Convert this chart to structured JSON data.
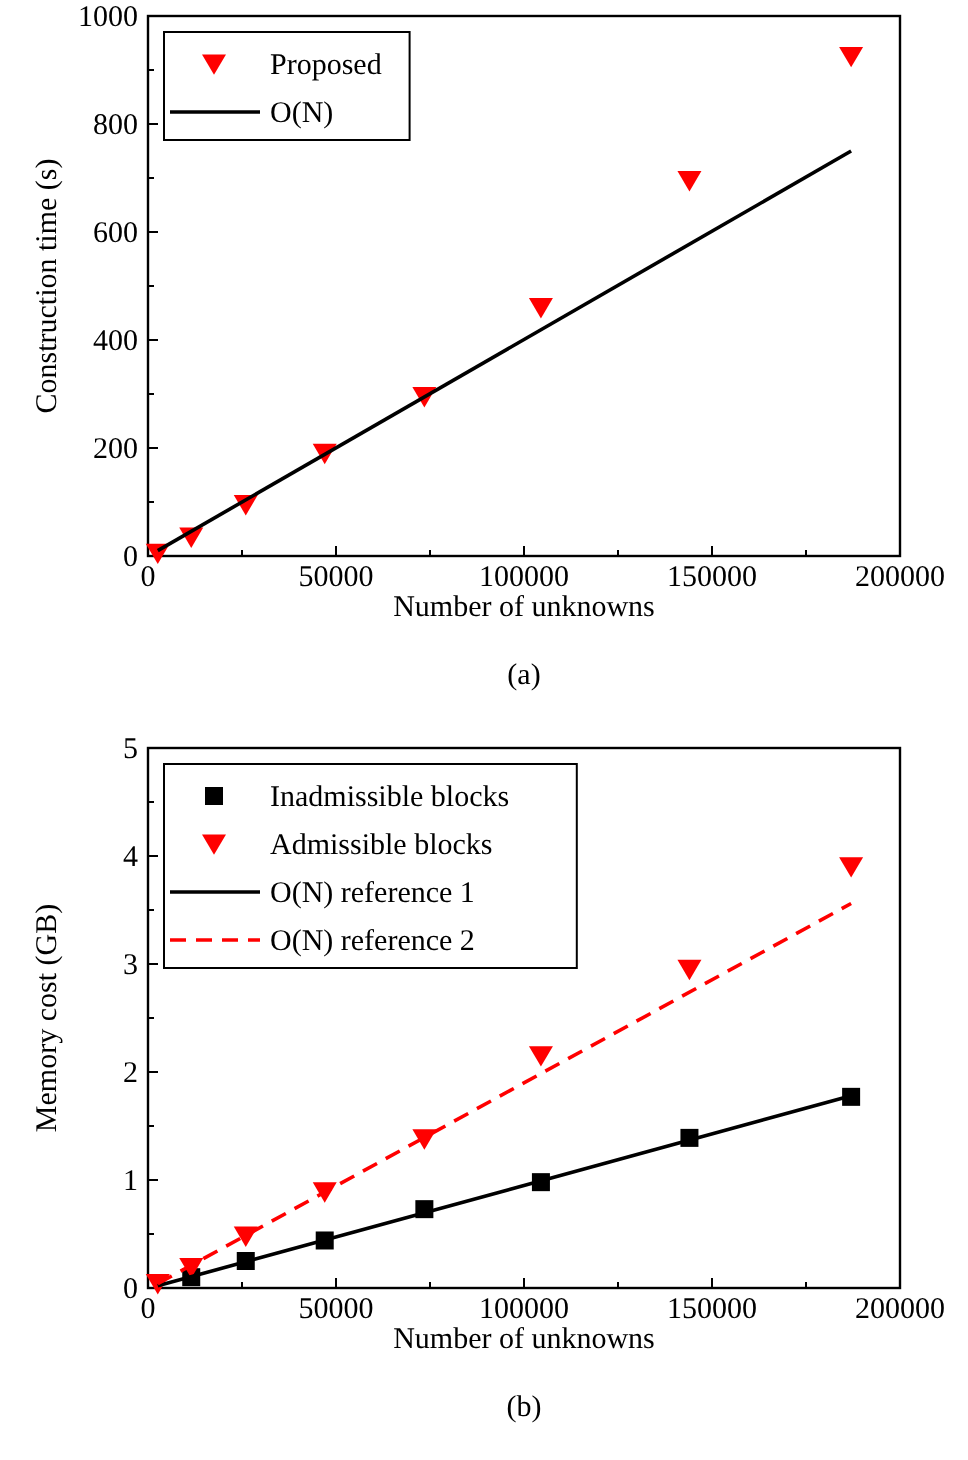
{
  "chart_data": [
    {
      "type": "scatter",
      "xlabel": "Number of unknowns",
      "ylabel": "Construction time (s)",
      "xlim": [
        0,
        200000
      ],
      "ylim": [
        0,
        1000
      ],
      "xticks": [
        0,
        {
          "value": 25000,
          "label": null
        },
        50000,
        {
          "value": 75000,
          "label": null
        },
        100000,
        {
          "value": 125000,
          "label": null
        },
        150000,
        {
          "value": 175000,
          "label": null
        },
        200000
      ],
      "yticks": [
        0,
        {
          "value": 100,
          "label": null
        },
        200,
        {
          "value": 300,
          "label": null
        },
        400,
        {
          "value": 500,
          "label": null
        },
        600,
        {
          "value": 700,
          "label": null
        },
        800,
        {
          "value": 900,
          "label": null
        },
        1000
      ],
      "legend": "top left",
      "grid": false,
      "annotations": [
        "(a)"
      ],
      "series": [
        {
          "name": "Proposed",
          "type": "scatter",
          "marker": "triangle",
          "color": "#ff0000",
          "x": [
            2600,
            11500,
            26000,
            47000,
            73500,
            104500,
            144000,
            187000
          ],
          "values": [
            5,
            35,
            95,
            190,
            295,
            460,
            695,
            925
          ]
        },
        {
          "name": "O(N)",
          "type": "line",
          "marker": "none",
          "line_style": "solid",
          "color": "#000000",
          "x": [
            2600,
            187000
          ],
          "values": [
            10,
            750
          ]
        }
      ]
    },
    {
      "type": "scatter",
      "xlabel": "Number of unknowns",
      "ylabel": "Memory cost (GB)",
      "xlim": [
        0,
        200000
      ],
      "ylim": [
        0,
        5
      ],
      "xticks": [
        0,
        {
          "value": 25000,
          "label": null
        },
        50000,
        {
          "value": 75000,
          "label": null
        },
        100000,
        {
          "value": 125000,
          "label": null
        },
        150000,
        {
          "value": 175000,
          "label": null
        },
        200000
      ],
      "yticks": [
        0,
        {
          "value": 0.5,
          "label": null
        },
        1,
        {
          "value": 1.5,
          "label": null
        },
        2,
        {
          "value": 2.5,
          "label": null
        },
        3,
        {
          "value": 3.5,
          "label": null
        },
        4,
        {
          "value": 4.5,
          "label": null
        },
        5
      ],
      "legend": "top left",
      "grid": false,
      "annotations": [
        "(b)"
      ],
      "series": [
        {
          "name": "Inadmissible blocks",
          "type": "scatter",
          "marker": "square",
          "color": "#000000",
          "x": [
            11500,
            26000,
            47000,
            73500,
            104500,
            144000,
            187000
          ],
          "values": [
            0.1,
            0.25,
            0.44,
            0.73,
            0.98,
            1.39,
            1.77
          ]
        },
        {
          "name": "Admissible blocks",
          "type": "scatter",
          "marker": "triangle",
          "color": "#ff0000",
          "x": [
            2600,
            11500,
            26000,
            47000,
            73500,
            104500,
            144000,
            187000
          ],
          "values": [
            0.04,
            0.19,
            0.48,
            0.89,
            1.38,
            2.15,
            2.95,
            3.9
          ]
        },
        {
          "name": "O(N) reference 1",
          "type": "line",
          "marker": "none",
          "line_style": "solid",
          "color": "#000000",
          "x": [
            2600,
            187000
          ],
          "values": [
            0.02,
            1.78
          ]
        },
        {
          "name": "O(N) reference 2",
          "type": "line",
          "marker": "none",
          "line_style": "dashed",
          "color": "#ff0000",
          "x": [
            2600,
            187000
          ],
          "values": [
            0.04,
            3.56
          ]
        }
      ]
    }
  ]
}
